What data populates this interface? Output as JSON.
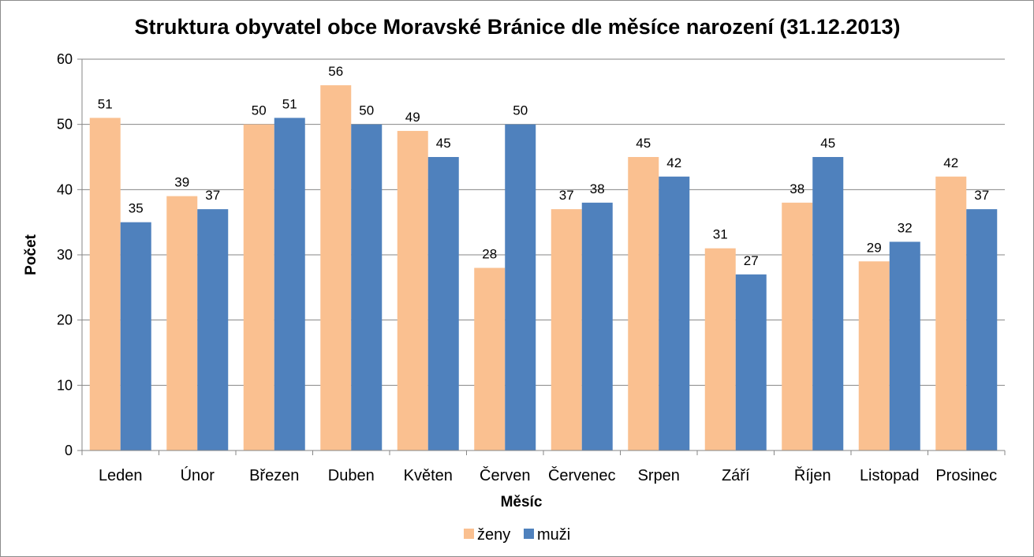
{
  "chart_data": {
    "type": "bar",
    "title": "Struktura obyvatel obce Moravské Bránice dle měsíce narození (31.12.2013)",
    "xlabel": "Měsíc",
    "ylabel": "Počet",
    "ylim": [
      0,
      60
    ],
    "yticks": [
      0,
      10,
      20,
      30,
      40,
      50,
      60
    ],
    "grid": true,
    "legend": "bottom",
    "categories": [
      "Leden",
      "Únor",
      "Březen",
      "Duben",
      "Květen",
      "Červen",
      "Červenec",
      "Srpen",
      "Září",
      "Říjen",
      "Listopad",
      "Prosinec"
    ],
    "series": [
      {
        "name": "ženy",
        "color": "#FAC090",
        "values": [
          51,
          39,
          50,
          56,
          49,
          28,
          37,
          45,
          31,
          38,
          29,
          42
        ]
      },
      {
        "name": "muži",
        "color": "#4F81BD",
        "values": [
          35,
          37,
          51,
          50,
          45,
          50,
          38,
          42,
          27,
          45,
          32,
          37
        ]
      }
    ]
  }
}
